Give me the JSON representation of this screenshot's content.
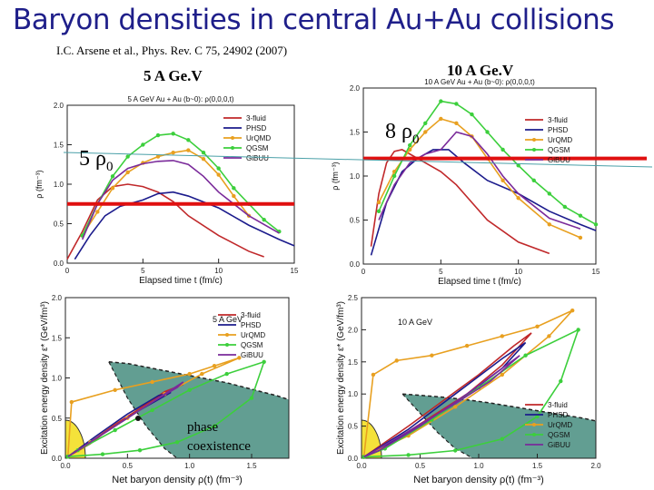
{
  "header": {
    "title": "Baryon densities in central Au+Au collisions",
    "reference": "I.C. Arsene et al., Phys. Rev. C 75, 24902 (2007)",
    "label_5": "5 A Ge.V",
    "label_10": "10 A Ge.V",
    "rho_5_num": "5 ρ",
    "rho_5_sub": "0",
    "rho_10_num": "8 ρ",
    "rho_10_sub": "0",
    "phase_1": "phase",
    "phase_2": "coexistence"
  },
  "colors": {
    "3-fluid": "#c0282a",
    "PHSD": "#1b1b8c",
    "UrQMD": "#e8a020",
    "QGSM": "#3ccf3c",
    "GiBUU": "#7a2a9a",
    "threshold": "#e01010",
    "region": "#2e7e6e"
  },
  "chart_data": [
    {
      "id": "tl",
      "type": "line",
      "title": "5 A GeV Au + Au (b~0): ρ(0,0,0,t)",
      "xlabel": "Elapsed time t (fm/c)",
      "ylabel": "ρ (fm⁻³)",
      "xlim": [
        0,
        15
      ],
      "ylim": [
        0,
        2.0
      ],
      "xticks": [
        "0",
        "5",
        "10",
        "15"
      ],
      "yticks": [
        "0.0",
        "0.5",
        "1.0",
        "1.5",
        "2.0"
      ],
      "threshold": 0.75,
      "series": [
        {
          "name": "3-fluid",
          "x": [
            0,
            1,
            2,
            3,
            4,
            5,
            6,
            7,
            8,
            10,
            12,
            13
          ],
          "y": [
            0.05,
            0.4,
            0.8,
            0.97,
            1.0,
            0.97,
            0.9,
            0.78,
            0.6,
            0.35,
            0.15,
            0.08
          ]
        },
        {
          "name": "PHSD",
          "x": [
            0.5,
            1.5,
            2.5,
            3.5,
            5,
            6,
            7,
            8,
            10,
            12,
            14,
            15
          ],
          "y": [
            0.05,
            0.35,
            0.6,
            0.72,
            0.8,
            0.88,
            0.9,
            0.85,
            0.7,
            0.48,
            0.3,
            0.22
          ]
        },
        {
          "name": "UrQMD",
          "x": [
            1,
            2,
            3,
            4,
            5,
            6,
            7,
            8,
            9,
            10,
            11,
            12
          ],
          "y": [
            0.35,
            0.65,
            0.95,
            1.15,
            1.27,
            1.35,
            1.4,
            1.43,
            1.32,
            1.12,
            0.85,
            0.6
          ]
        },
        {
          "name": "QGSM",
          "x": [
            1,
            2,
            3,
            4,
            5,
            6,
            7,
            8,
            9,
            10,
            11,
            12,
            13,
            14
          ],
          "y": [
            0.35,
            0.75,
            1.1,
            1.35,
            1.5,
            1.62,
            1.64,
            1.56,
            1.4,
            1.2,
            0.95,
            0.75,
            0.55,
            0.4
          ]
        },
        {
          "name": "GiBUU",
          "x": [
            1,
            2,
            3,
            4,
            5,
            6,
            7,
            8,
            9,
            10,
            12,
            14
          ],
          "y": [
            0.3,
            0.75,
            1.05,
            1.2,
            1.26,
            1.29,
            1.3,
            1.25,
            1.1,
            0.9,
            0.6,
            0.38
          ]
        }
      ]
    },
    {
      "id": "tr",
      "type": "line",
      "title": "10 A GeV Au + Au (b~0): ρ(0,0,0,t)",
      "xlabel": "Elapsed time t (fm/c)",
      "ylabel": "ρ (fm⁻³)",
      "xlim": [
        0,
        15
      ],
      "ylim": [
        0,
        2.0
      ],
      "xticks": [
        "0",
        "5",
        "10",
        "15"
      ],
      "yticks": [
        "0.0",
        "0.5",
        "1.0",
        "1.5",
        "2.0"
      ],
      "threshold": 1.2,
      "series": [
        {
          "name": "3-fluid",
          "x": [
            0.5,
            1,
            1.5,
            2,
            2.5,
            3,
            4,
            5,
            6,
            8,
            10,
            12
          ],
          "y": [
            0.2,
            0.8,
            1.15,
            1.28,
            1.3,
            1.25,
            1.15,
            1.05,
            0.9,
            0.5,
            0.25,
            0.12
          ]
        },
        {
          "name": "PHSD",
          "x": [
            0.5,
            1.5,
            2.5,
            3.5,
            4.5,
            5.5,
            6.5,
            8,
            10,
            12,
            14,
            15
          ],
          "y": [
            0.1,
            0.7,
            1.05,
            1.2,
            1.3,
            1.3,
            1.15,
            0.95,
            0.8,
            0.6,
            0.45,
            0.38
          ]
        },
        {
          "name": "UrQMD",
          "x": [
            1,
            2,
            3,
            4,
            5,
            6,
            7,
            8,
            9,
            10,
            12,
            14
          ],
          "y": [
            0.7,
            1.05,
            1.3,
            1.5,
            1.65,
            1.6,
            1.45,
            1.2,
            0.95,
            0.75,
            0.45,
            0.3
          ]
        },
        {
          "name": "QGSM",
          "x": [
            1,
            2,
            3,
            4,
            5,
            6,
            7,
            8,
            9,
            10,
            11,
            12,
            13,
            14,
            15
          ],
          "y": [
            0.6,
            1.0,
            1.35,
            1.6,
            1.85,
            1.82,
            1.7,
            1.5,
            1.3,
            1.12,
            0.95,
            0.8,
            0.65,
            0.55,
            0.45
          ]
        },
        {
          "name": "GiBUU",
          "x": [
            1,
            2,
            3,
            4,
            5,
            6,
            7,
            8,
            9,
            10,
            12,
            14
          ],
          "y": [
            0.5,
            0.9,
            1.15,
            1.25,
            1.3,
            1.5,
            1.45,
            1.25,
            1.0,
            0.8,
            0.52,
            0.4
          ]
        }
      ]
    },
    {
      "id": "bl",
      "type": "line",
      "title": "5 A GeV",
      "xlabel": "Net baryon density ρ(t) (fm⁻³)",
      "ylabel": "Excitation energy density ε* (GeV/fm³)",
      "xlim": [
        0,
        1.8
      ],
      "ylim": [
        0,
        2.0
      ],
      "xticks": [
        "0.0",
        "0.5",
        "1.0",
        "1.5"
      ],
      "yticks": [
        "0.0",
        "0.5",
        "1.0",
        "1.5",
        "2.0"
      ],
      "coexistence_boundary": {
        "x": [
          0.35,
          0.5,
          0.7,
          0.9,
          1.1,
          1.3,
          1.5,
          1.7,
          1.8
        ],
        "y": [
          1.2,
          1.18,
          1.12,
          1.06,
          1.0,
          0.94,
          0.86,
          0.78,
          0.73
        ]
      },
      "coexistence_inner": {
        "x": [
          0.35,
          0.5,
          0.65,
          0.8,
          0.9
        ],
        "y": [
          1.2,
          0.75,
          0.4,
          0.12,
          0.0
        ]
      },
      "series": [
        {
          "name": "3-fluid",
          "x": [
            0.02,
            0.2,
            0.4,
            0.6,
            0.8,
            0.95,
            0.8,
            0.6,
            0.4,
            0.2,
            0.02
          ],
          "y": [
            0.02,
            0.2,
            0.42,
            0.62,
            0.82,
            0.92,
            0.83,
            0.62,
            0.42,
            0.18,
            0.02
          ]
        },
        {
          "name": "PHSD",
          "x": [
            0.02,
            0.3,
            0.6,
            0.85,
            0.75,
            0.5,
            0.25,
            0.02
          ],
          "y": [
            0.02,
            0.3,
            0.6,
            0.82,
            0.78,
            0.55,
            0.28,
            0.02
          ]
        },
        {
          "name": "UrQMD",
          "x": [
            0.02,
            0.05,
            0.4,
            0.7,
            1.0,
            1.2,
            1.4,
            1.1,
            0.8,
            0.5,
            0.2,
            0.02
          ],
          "y": [
            0.02,
            0.7,
            0.85,
            0.95,
            1.05,
            1.15,
            1.25,
            1.05,
            0.8,
            0.5,
            0.2,
            0.02
          ]
        },
        {
          "name": "QGSM",
          "x": [
            0.02,
            0.3,
            0.6,
            0.9,
            1.2,
            1.5,
            1.6,
            1.3,
            1.0,
            0.7,
            0.4,
            0.1,
            0.02
          ],
          "y": [
            0.02,
            0.05,
            0.1,
            0.2,
            0.4,
            0.75,
            1.2,
            1.05,
            0.85,
            0.6,
            0.35,
            0.1,
            0.02
          ]
        },
        {
          "name": "GiBUU",
          "x": [
            0.02,
            0.3,
            0.55,
            0.8,
            0.95,
            0.9,
            0.7,
            0.45,
            0.2,
            0.02
          ],
          "y": [
            0.02,
            0.3,
            0.55,
            0.8,
            0.95,
            0.88,
            0.7,
            0.45,
            0.2,
            0.02
          ]
        }
      ]
    },
    {
      "id": "br",
      "type": "line",
      "title": "10 A GeV",
      "xlabel": "Net baryon density ρ(t) (fm⁻³)",
      "ylabel": "Excitation energy density ε* (GeV/fm³)",
      "xlim": [
        0,
        2.0
      ],
      "ylim": [
        0,
        2.5
      ],
      "xticks": [
        "0.0",
        "0.5",
        "1.0",
        "1.5",
        "2.0"
      ],
      "yticks": [
        "0.0",
        "0.5",
        "1.0",
        "1.5",
        "2.0",
        "2.5"
      ],
      "coexistence_boundary": {
        "x": [
          0.35,
          0.5,
          0.7,
          0.9,
          1.1,
          1.3,
          1.5,
          1.7,
          1.9,
          2.0
        ],
        "y": [
          1.0,
          0.98,
          0.95,
          0.91,
          0.86,
          0.8,
          0.74,
          0.68,
          0.62,
          0.58
        ]
      },
      "coexistence_inner": {
        "x": [
          0.35,
          0.5,
          0.65,
          0.8,
          0.95
        ],
        "y": [
          1.0,
          0.7,
          0.4,
          0.15,
          0.0
        ]
      },
      "series": [
        {
          "name": "3-fluid",
          "x": [
            0.02,
            0.3,
            0.6,
            0.9,
            1.2,
            1.45,
            1.3,
            1.0,
            0.7,
            0.4,
            0.1,
            0.02
          ],
          "y": [
            0.02,
            0.3,
            0.65,
            1.0,
            1.45,
            1.95,
            1.75,
            1.3,
            0.9,
            0.5,
            0.12,
            0.02
          ]
        },
        {
          "name": "PHSD",
          "x": [
            0.02,
            0.4,
            0.8,
            1.2,
            1.4,
            1.2,
            0.8,
            0.4,
            0.02
          ],
          "y": [
            0.02,
            0.4,
            0.85,
            1.4,
            1.8,
            1.55,
            1.0,
            0.45,
            0.02
          ]
        },
        {
          "name": "UrQMD",
          "x": [
            0.02,
            0.1,
            0.3,
            0.6,
            0.9,
            1.2,
            1.5,
            1.8,
            1.6,
            1.2,
            0.8,
            0.4,
            0.02
          ],
          "y": [
            0.02,
            1.3,
            1.52,
            1.6,
            1.75,
            1.9,
            2.05,
            2.3,
            1.9,
            1.3,
            0.8,
            0.35,
            0.02
          ]
        },
        {
          "name": "QGSM",
          "x": [
            0.02,
            0.4,
            0.8,
            1.2,
            1.5,
            1.7,
            1.85,
            1.4,
            1.0,
            0.6,
            0.2,
            0.02
          ],
          "y": [
            0.02,
            0.05,
            0.12,
            0.3,
            0.65,
            1.2,
            2.0,
            1.6,
            1.1,
            0.6,
            0.15,
            0.02
          ]
        },
        {
          "name": "GiBUU",
          "x": [
            0.02,
            0.4,
            0.8,
            1.1,
            1.35,
            1.2,
            0.9,
            0.5,
            0.15,
            0.02
          ],
          "y": [
            0.02,
            0.42,
            0.85,
            1.2,
            1.6,
            1.4,
            1.0,
            0.5,
            0.12,
            0.02
          ]
        }
      ]
    }
  ]
}
